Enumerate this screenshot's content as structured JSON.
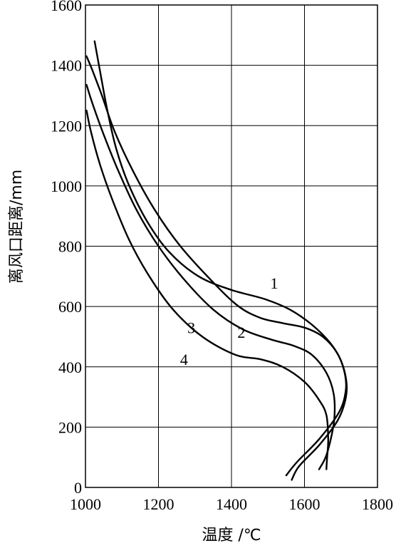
{
  "chart_data": {
    "type": "line",
    "xlabel": "温度 /℃",
    "ylabel": "离风口距离/mm",
    "xlim": [
      1000,
      1800
    ],
    "ylim": [
      0,
      1600
    ],
    "xticks": [
      1000,
      1200,
      1400,
      1600,
      1800
    ],
    "yticks": [
      0,
      200,
      400,
      600,
      800,
      1000,
      1200,
      1400,
      1600
    ],
    "grid": true,
    "series": [
      {
        "name": "1",
        "points": [
          [
            1025,
            1480
          ],
          [
            1040,
            1380
          ],
          [
            1060,
            1250
          ],
          [
            1085,
            1120
          ],
          [
            1120,
            1000
          ],
          [
            1170,
            880
          ],
          [
            1230,
            780
          ],
          [
            1310,
            700
          ],
          [
            1400,
            655
          ],
          [
            1490,
            625
          ],
          [
            1560,
            590
          ],
          [
            1620,
            540
          ],
          [
            1670,
            480
          ],
          [
            1700,
            420
          ],
          [
            1715,
            350
          ],
          [
            1712,
            290
          ],
          [
            1690,
            220
          ],
          [
            1640,
            140
          ],
          [
            1585,
            70
          ],
          [
            1565,
            25
          ]
        ],
        "label_at": [
          1517,
          678
        ]
      },
      {
        "name": "2",
        "points": [
          [
            1003,
            1430
          ],
          [
            1020,
            1380
          ],
          [
            1045,
            1300
          ],
          [
            1080,
            1180
          ],
          [
            1130,
            1050
          ],
          [
            1190,
            920
          ],
          [
            1260,
            800
          ],
          [
            1350,
            680
          ],
          [
            1420,
            600
          ],
          [
            1480,
            562
          ],
          [
            1540,
            545
          ],
          [
            1600,
            530
          ],
          [
            1650,
            500
          ],
          [
            1690,
            445
          ],
          [
            1710,
            380
          ],
          [
            1713,
            320
          ],
          [
            1695,
            250
          ],
          [
            1640,
            160
          ],
          [
            1580,
            85
          ],
          [
            1550,
            40
          ]
        ],
        "label_at": [
          1427,
          515
        ]
      },
      {
        "name": "3",
        "points": [
          [
            1003,
            1335
          ],
          [
            1020,
            1270
          ],
          [
            1050,
            1170
          ],
          [
            1090,
            1050
          ],
          [
            1140,
            920
          ],
          [
            1200,
            800
          ],
          [
            1270,
            690
          ],
          [
            1350,
            590
          ],
          [
            1430,
            525
          ],
          [
            1510,
            490
          ],
          [
            1570,
            470
          ],
          [
            1620,
            440
          ],
          [
            1660,
            380
          ],
          [
            1680,
            310
          ],
          [
            1682,
            230
          ],
          [
            1672,
            160
          ],
          [
            1658,
            100
          ],
          [
            1640,
            60
          ]
        ],
        "label_at": [
          1290,
          530
        ]
      },
      {
        "name": "4",
        "points": [
          [
            1003,
            1250
          ],
          [
            1015,
            1180
          ],
          [
            1040,
            1070
          ],
          [
            1075,
            950
          ],
          [
            1120,
            820
          ],
          [
            1175,
            700
          ],
          [
            1240,
            590
          ],
          [
            1320,
            500
          ],
          [
            1410,
            440
          ],
          [
            1480,
            425
          ],
          [
            1540,
            400
          ],
          [
            1600,
            350
          ],
          [
            1640,
            290
          ],
          [
            1660,
            240
          ],
          [
            1665,
            160
          ],
          [
            1662,
            100
          ],
          [
            1660,
            60
          ]
        ],
        "label_at": [
          1270,
          425
        ]
      }
    ]
  }
}
